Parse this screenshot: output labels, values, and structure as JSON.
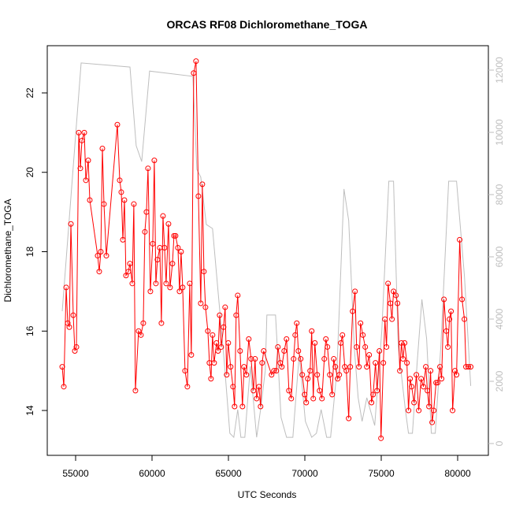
{
  "chart_data": {
    "type": "line",
    "title": "ORCAS RF08 Dichloromethane_TOGA",
    "xlabel": "UTC Seconds",
    "ylabel": "Dichloromethane_TOGA",
    "xlim": [
      53144,
      82010
    ],
    "ylim": [
      12.87,
      23.19
    ],
    "y2lim": [
      -380,
      12785
    ],
    "xticks": [
      55000,
      60000,
      65000,
      70000,
      75000,
      80000
    ],
    "yticks": [
      14,
      16,
      18,
      20,
      22
    ],
    "y2ticks": [
      0,
      2000,
      4000,
      6000,
      8000,
      10000,
      12000
    ],
    "series": [
      {
        "color": "#ff0000",
        "markers": true,
        "x": [
          54124,
          54227,
          54382,
          54485,
          54588,
          54691,
          54845,
          54948,
          55052,
          55206,
          55309,
          55412,
          55567,
          55670,
          55824,
          55927,
          56442,
          56545,
          56648,
          56751,
          56854,
          57009,
          57730,
          57884,
          57987,
          58090,
          58193,
          58296,
          58451,
          58554,
          58708,
          58811,
          58914,
          59120,
          59275,
          59429,
          59532,
          59635,
          59738,
          59893,
          60047,
          60150,
          60253,
          60356,
          60511,
          60614,
          60717,
          60820,
          60923,
          61077,
          61180,
          61335,
          61438,
          61541,
          61695,
          61798,
          61901,
          62004,
          62159,
          62313,
          62468,
          62571,
          62725,
          62880,
          63034,
          63189,
          63292,
          63395,
          63498,
          63652,
          63755,
          63858,
          63961,
          64064,
          64219,
          64322,
          64425,
          64528,
          64682,
          64785,
          64888,
          64991,
          65146,
          65300,
          65403,
          65506,
          65609,
          65764,
          65918,
          66021,
          66176,
          66330,
          66485,
          66639,
          66742,
          66845,
          67000,
          67103,
          67206,
          67309,
          67824,
          67978,
          68133,
          68236,
          68390,
          68493,
          68648,
          68802,
          68957,
          69111,
          69266,
          69369,
          69472,
          69575,
          69729,
          69832,
          69987,
          70090,
          70193,
          70347,
          70450,
          70553,
          70656,
          70811,
          70965,
          71120,
          71274,
          71377,
          71480,
          71635,
          71789,
          71892,
          71995,
          72150,
          72253,
          72356,
          72459,
          72613,
          72716,
          72871,
          72974,
          73128,
          73283,
          73386,
          73540,
          73643,
          73798,
          73952,
          74055,
          74210,
          74364,
          74467,
          74622,
          74725,
          74879,
          74982,
          75137,
          75240,
          75343,
          75446,
          75600,
          75703,
          75806,
          75961,
          76064,
          76218,
          76321,
          76424,
          76527,
          76682,
          76785,
          76888,
          76991,
          77145,
          77300,
          77454,
          77609,
          77763,
          77918,
          78021,
          78124,
          78227,
          78330,
          78433,
          78587,
          78690,
          78845,
          78948,
          79102,
          79257,
          79360,
          79463,
          79566,
          79669,
          79823,
          79926,
          80132,
          80287,
          80441,
          80544,
          80699,
          80853
        ],
        "values": [
          15.1,
          14.6,
          17.1,
          16.2,
          16.1,
          18.7,
          16.4,
          15.5,
          15.6,
          21.0,
          20.1,
          20.8,
          21.0,
          19.8,
          20.3,
          19.3,
          17.9,
          17.5,
          18.0,
          20.6,
          19.2,
          17.9,
          21.2,
          19.8,
          19.5,
          18.3,
          19.3,
          17.4,
          17.5,
          17.7,
          17.2,
          19.2,
          14.5,
          16.0,
          15.9,
          16.2,
          18.5,
          19.0,
          20.1,
          17.0,
          18.2,
          20.3,
          17.2,
          17.8,
          18.1,
          16.2,
          18.9,
          18.1,
          17.2,
          18.7,
          17.1,
          17.7,
          18.4,
          18.4,
          18.1,
          17.0,
          18.0,
          17.1,
          15.0,
          14.6,
          17.2,
          15.4,
          22.5,
          22.8,
          19.4,
          16.7,
          19.7,
          17.5,
          16.6,
          16.0,
          15.2,
          14.8,
          15.9,
          15.2,
          15.7,
          15.5,
          16.4,
          15.6,
          16.1,
          16.6,
          14.9,
          15.7,
          15.1,
          14.6,
          14.1,
          16.4,
          16.9,
          15.5,
          14.1,
          15.1,
          14.9,
          15.8,
          15.3,
          14.5,
          15.3,
          14.3,
          14.6,
          14.1,
          15.2,
          15.5,
          14.9,
          15.0,
          15.0,
          15.6,
          15.2,
          15.1,
          15.5,
          15.8,
          14.5,
          14.3,
          15.3,
          15.9,
          16.2,
          15.5,
          15.3,
          14.9,
          14.4,
          14.2,
          14.8,
          15.0,
          16.0,
          14.3,
          15.7,
          14.9,
          14.5,
          14.3,
          15.3,
          15.8,
          15.6,
          14.9,
          14.4,
          15.3,
          15.1,
          14.8,
          14.9,
          15.7,
          15.9,
          15.1,
          15.0,
          13.8,
          15.1,
          16.5,
          17.0,
          15.6,
          15.1,
          16.2,
          15.9,
          15.6,
          15.1,
          15.4,
          14.2,
          14.4,
          15.2,
          14.5,
          15.5,
          13.3,
          15.2,
          16.3,
          15.6,
          17.2,
          16.7,
          16.3,
          17.0,
          16.9,
          16.7,
          15.0,
          15.7,
          15.3,
          15.7,
          15.2,
          14.0,
          14.8,
          14.6,
          14.2,
          14.9,
          14.0,
          14.8,
          14.6,
          15.1,
          14.5,
          14.1,
          15.0,
          13.7,
          14.0,
          14.7,
          14.7,
          15.1,
          14.8,
          16.8,
          16.0,
          15.6,
          16.3,
          16.5,
          14.0,
          15.0,
          14.9,
          18.3,
          16.8,
          16.3,
          15.1,
          15.1,
          15.1
        ]
      },
      {
        "color": "#bebebe",
        "axis": "y2",
        "markers": false,
        "x": [
          54124,
          55361,
          58554,
          58966,
          59326,
          59841,
          62674,
          62931,
          63189,
          63549,
          63961,
          64734,
          65094,
          65352,
          65609,
          65815,
          66073,
          66433,
          66845,
          67103,
          67412,
          67515,
          68081,
          68442,
          68802,
          69214,
          69626,
          70038,
          70450,
          70759,
          71068,
          71429,
          71686,
          72098,
          72562,
          72871,
          73231,
          73489,
          73746,
          74055,
          74570,
          75034,
          75497,
          75806,
          76115,
          76579,
          76785,
          77042,
          77351,
          77660,
          77969,
          78278,
          78536,
          78896,
          79411,
          79926,
          80441,
          80853
        ],
        "values": [
          4250,
          12230,
          12100,
          9570,
          9060,
          11970,
          11800,
          8810,
          8560,
          7040,
          6910,
          2600,
          330,
          200,
          1090,
          200,
          200,
          2480,
          200,
          1090,
          2350,
          4130,
          4130,
          840,
          200,
          200,
          2860,
          710,
          200,
          330,
          1090,
          200,
          200,
          2350,
          8180,
          7160,
          3110,
          1470,
          710,
          1470,
          580,
          3620,
          8430,
          8430,
          3110,
          1090,
          330,
          330,
          2600,
          4630,
          3370,
          330,
          330,
          3110,
          8430,
          8430,
          5390,
          1850
        ]
      }
    ]
  }
}
